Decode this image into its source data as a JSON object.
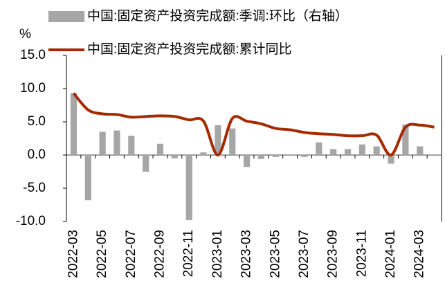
{
  "chart_data": {
    "type": "bar-line",
    "y_unit": "%",
    "categories": [
      "2022-03",
      null,
      "2022-05",
      null,
      "2022-07",
      null,
      "2022-09",
      null,
      "2022-11",
      null,
      "2023-01",
      null,
      "2023-03",
      null,
      "2023-05",
      null,
      "2023-07",
      null,
      "2023-09",
      null,
      "2023-11",
      null,
      "2024-01",
      null,
      "2024-03",
      null
    ],
    "series": [
      {
        "name": "中国:固定资产投资完成额:季调:环比（右轴）",
        "type": "bar",
        "axis": "y2",
        "color": "#a6a6a6",
        "values": [
          0.93,
          -0.68,
          0.35,
          0.37,
          0.29,
          -0.25,
          0.17,
          -0.05,
          -0.98,
          0.04,
          0.45,
          0.4,
          -0.18,
          -0.06,
          -0.03,
          0.01,
          -0.03,
          0.19,
          0.09,
          0.09,
          0.16,
          0.13,
          -0.13,
          0.46,
          0.13,
          -0.01
        ]
      },
      {
        "name": "中国:固定资产投资完成额:累计同比",
        "type": "line",
        "color": "#a52a00",
        "values": [
          9.3,
          6.8,
          6.2,
          6.1,
          5.7,
          5.8,
          5.9,
          5.8,
          5.3,
          5.1,
          0,
          5.5,
          5.1,
          4.7,
          4.0,
          3.8,
          3.4,
          3.2,
          3.1,
          2.9,
          2.9,
          3.0,
          0,
          4.2,
          4.5,
          4.2
        ]
      }
    ],
    "ylim": [
      -10,
      15
    ],
    "yticks": [
      {
        "value": -10,
        "label": "-10.0"
      },
      {
        "value": -5,
        "label": "-5.0"
      },
      {
        "value": 0,
        "label": "0.0"
      },
      {
        "value": 5,
        "label": "5.0"
      },
      {
        "value": 10,
        "label": "10.0"
      },
      {
        "value": 15,
        "label": "15.0"
      }
    ],
    "y2lim": [
      -1,
      1.5
    ],
    "legend": "top"
  }
}
